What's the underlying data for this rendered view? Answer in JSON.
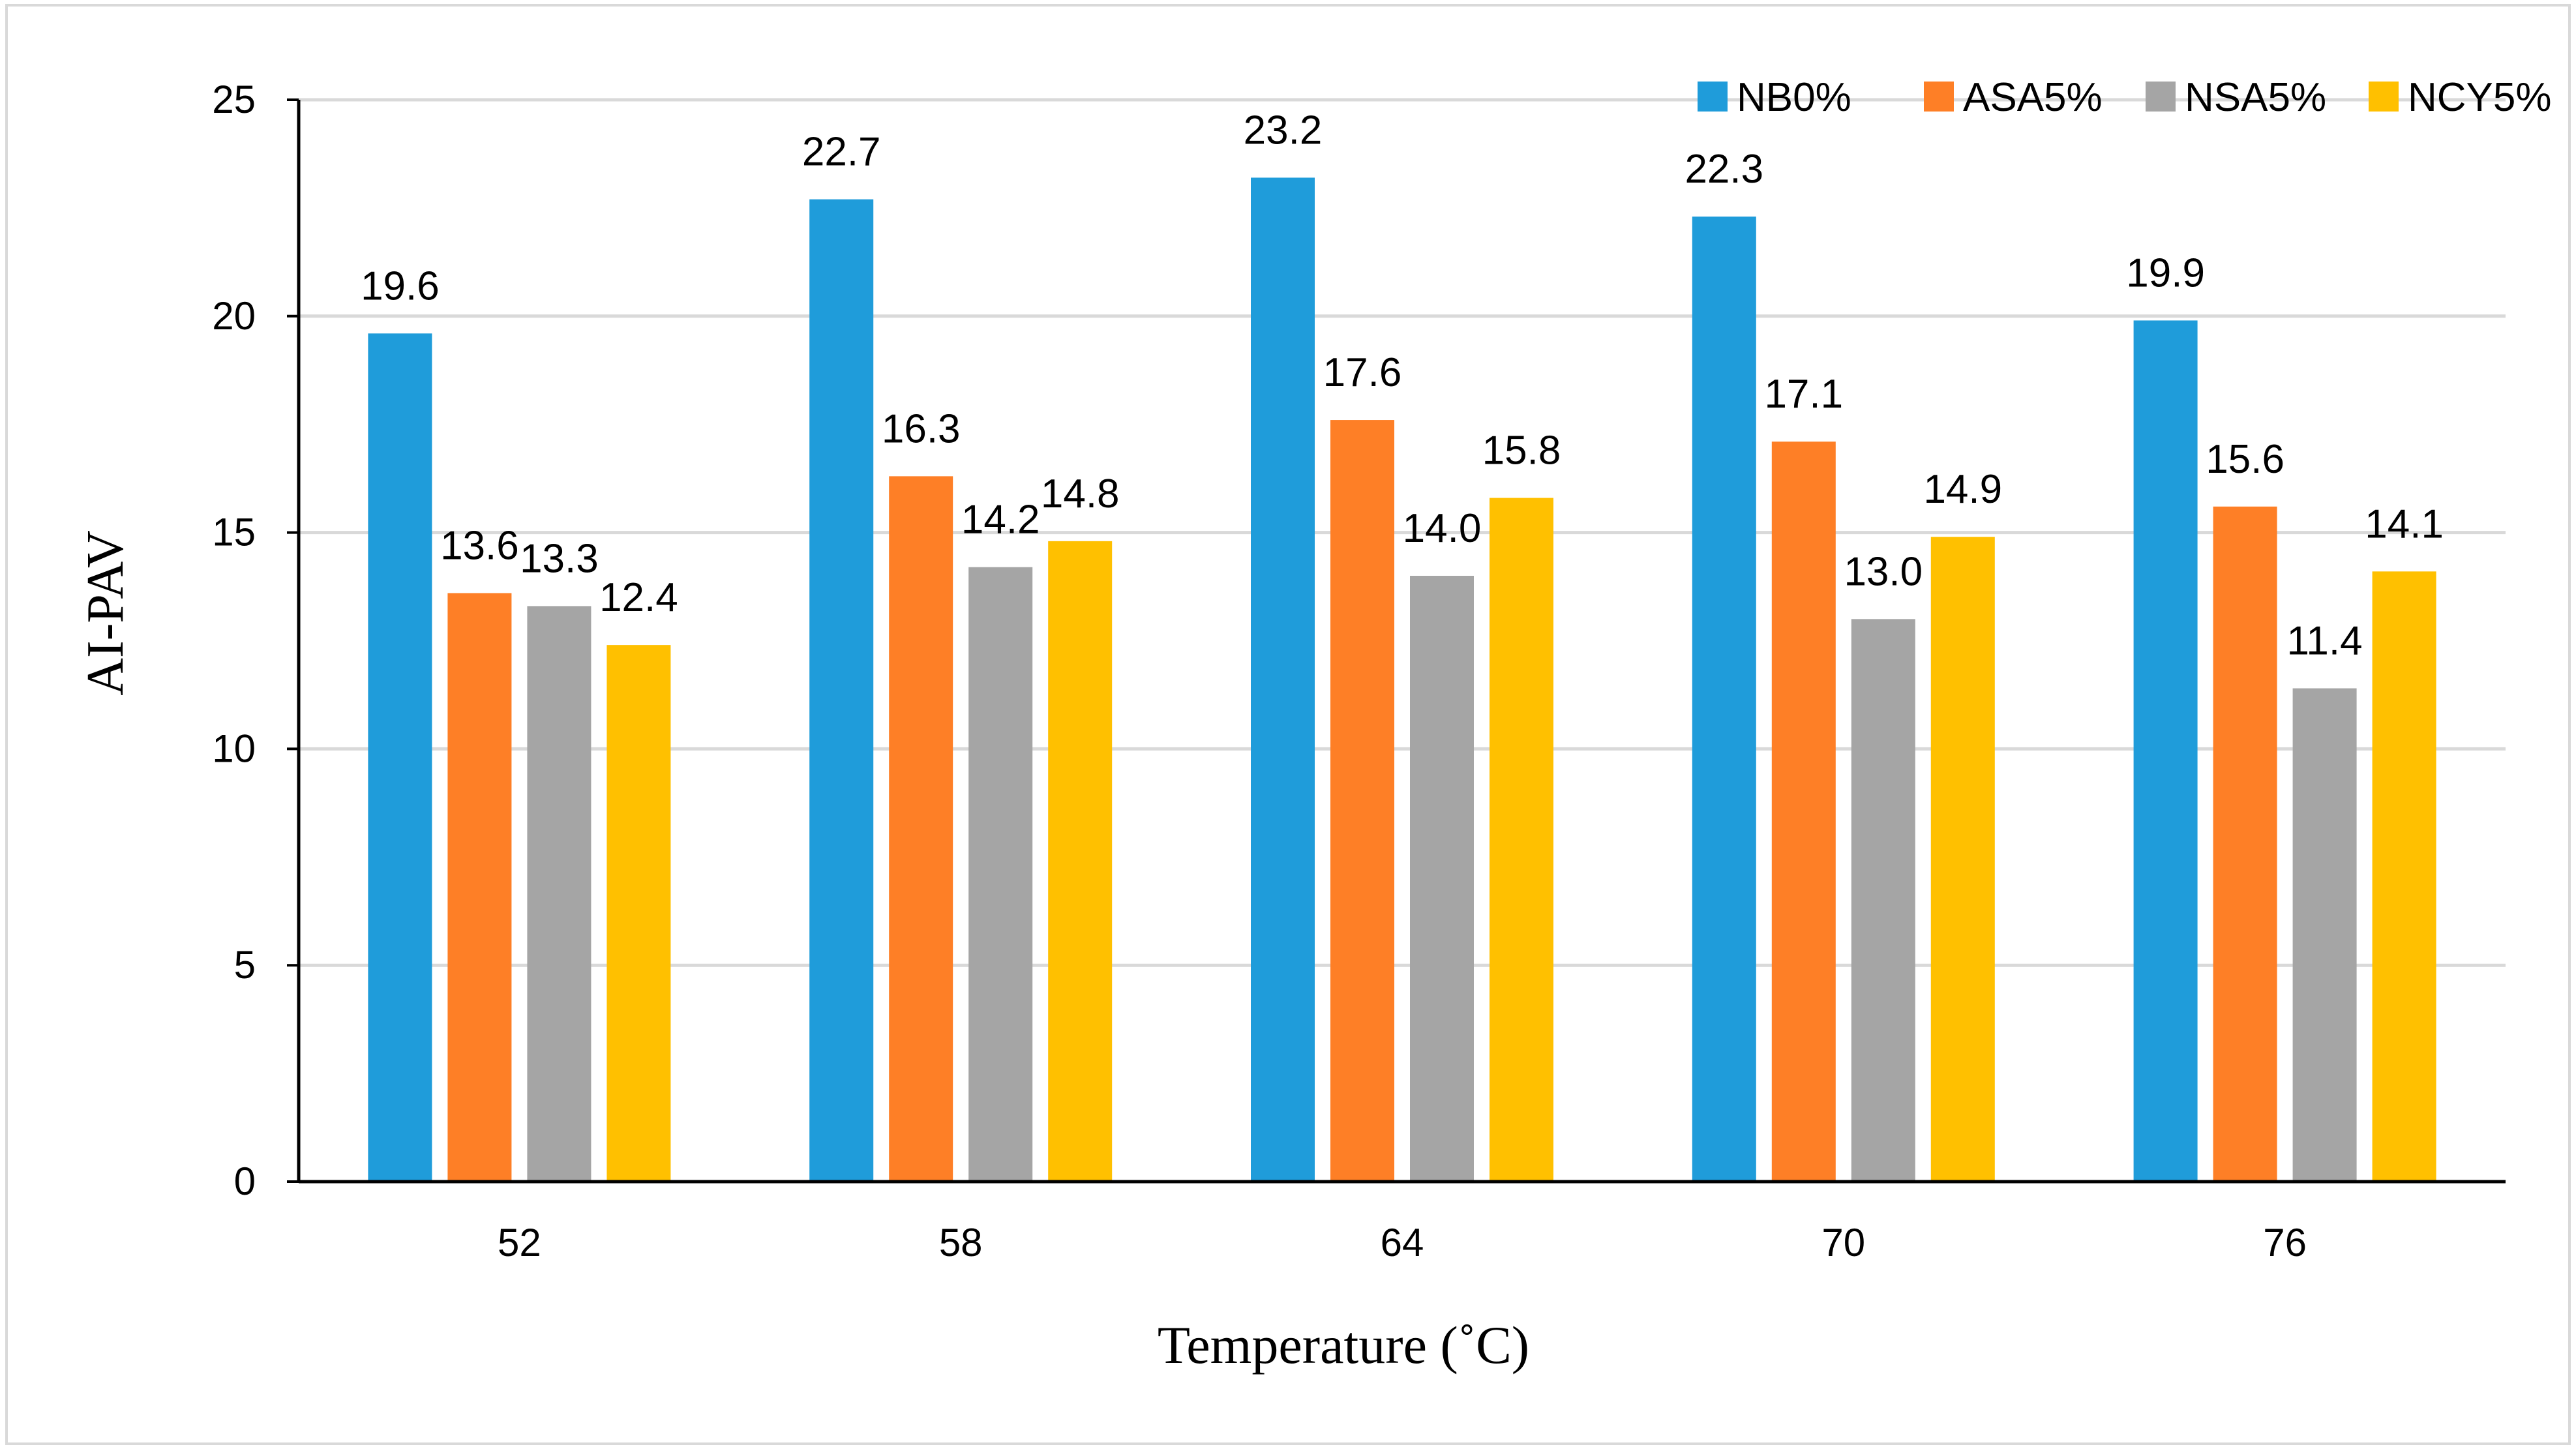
{
  "chart_data": {
    "type": "bar",
    "title": "",
    "xlabel": "Temperature (˚C)",
    "ylabel": "AI-PAV",
    "categories": [
      "52",
      "58",
      "64",
      "70",
      "76"
    ],
    "series": [
      {
        "name": "NB0%",
        "color": "#1F9CDA",
        "values": [
          19.6,
          22.7,
          23.2,
          22.3,
          19.9
        ]
      },
      {
        "name": "ASA5%",
        "color": "#FE7F26",
        "values": [
          13.6,
          16.3,
          17.6,
          17.1,
          15.6
        ]
      },
      {
        "name": "NSA5%",
        "color": "#A5A5A5",
        "values": [
          13.3,
          14.2,
          14.0,
          13.0,
          11.4
        ]
      },
      {
        "name": "NCY5%",
        "color": "#FFC000",
        "values": [
          12.4,
          14.8,
          15.8,
          14.9,
          14.1
        ]
      }
    ],
    "data_labels": [
      [
        "19.6",
        "22.7",
        "23.2",
        "22.3",
        "19.9"
      ],
      [
        "13.6",
        "16.3",
        "17.6",
        "17.1",
        "15.6"
      ],
      [
        "13.3",
        "14.2",
        "14.0",
        "13.0",
        "11.4"
      ],
      [
        "12.4",
        "14.8",
        "15.8",
        "14.9",
        "14.1"
      ]
    ],
    "ylim": [
      0,
      25
    ],
    "yticks": [
      0,
      5,
      10,
      15,
      20,
      25
    ],
    "ytick_labels": [
      "0",
      "5",
      "10",
      "15",
      "20",
      "25"
    ],
    "grid": true,
    "legend_position": "top-right"
  }
}
